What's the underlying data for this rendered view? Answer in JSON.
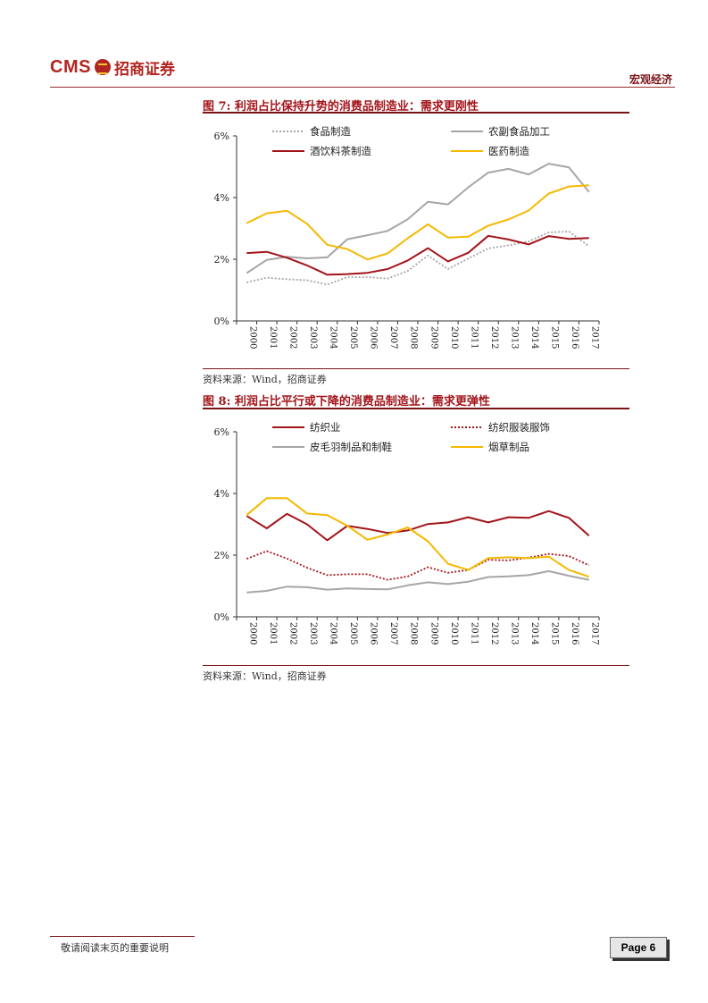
{
  "header": {
    "logo_text": "CMS",
    "logo_cn": "招商证券",
    "section": "宏观经济"
  },
  "figures": [
    {
      "title": "图 7: 利润占比保持升势的消费品制造业：需求更刚性",
      "source": "资料来源：Wind，招商证券"
    },
    {
      "title": "图 8: 利润占比平行或下降的消费品制造业：需求更弹性",
      "source": "资料来源：Wind，招商证券"
    }
  ],
  "chart_data": [
    {
      "type": "line",
      "x": [
        "2000",
        "2001",
        "2002",
        "2003",
        "2004",
        "2005",
        "2006",
        "2007",
        "2008",
        "2009",
        "2010",
        "2011",
        "2012",
        "2013",
        "2014",
        "2015",
        "2016",
        "2017"
      ],
      "ylim": [
        0,
        6
      ],
      "yticks": [
        "0%",
        "2%",
        "4%",
        "6%"
      ],
      "series": [
        {
          "name": "食品制造",
          "color": "#a6a6a6",
          "style": "dotted",
          "values": [
            1.25,
            1.4,
            1.35,
            1.32,
            1.18,
            1.42,
            1.42,
            1.37,
            1.62,
            2.12,
            1.68,
            2.02,
            2.35,
            2.45,
            2.58,
            2.87,
            2.9,
            2.42
          ]
        },
        {
          "name": "农副食品加工",
          "color": "#a6a6a6",
          "style": "solid",
          "values": [
            1.55,
            1.98,
            2.08,
            2.03,
            2.06,
            2.65,
            2.78,
            2.92,
            3.3,
            3.86,
            3.78,
            4.33,
            4.81,
            4.93,
            4.75,
            5.1,
            4.98,
            4.18
          ]
        },
        {
          "name": "酒饮料茶制造",
          "color": "#a3141a",
          "style": "solid",
          "values": [
            2.2,
            2.24,
            2.05,
            1.8,
            1.5,
            1.52,
            1.56,
            1.68,
            1.96,
            2.36,
            1.93,
            2.21,
            2.76,
            2.64,
            2.48,
            2.75,
            2.66,
            2.69
          ]
        },
        {
          "name": "医药制造",
          "color": "#f5b800",
          "style": "solid",
          "values": [
            3.17,
            3.49,
            3.57,
            3.15,
            2.47,
            2.33,
            1.99,
            2.19,
            2.68,
            3.13,
            2.7,
            2.73,
            3.09,
            3.29,
            3.58,
            4.13,
            4.36,
            4.4
          ]
        }
      ]
    },
    {
      "type": "line",
      "x": [
        "2000",
        "2001",
        "2002",
        "2003",
        "2004",
        "2005",
        "2006",
        "2007",
        "2008",
        "2009",
        "2010",
        "2011",
        "2012",
        "2013",
        "2014",
        "2015",
        "2016",
        "2017"
      ],
      "ylim": [
        0,
        6
      ],
      "yticks": [
        "0%",
        "2%",
        "4%",
        "6%"
      ],
      "series": [
        {
          "name": "纺织业",
          "color": "#a3141a",
          "style": "solid",
          "values": [
            3.27,
            2.87,
            3.34,
            3.0,
            2.48,
            2.95,
            2.85,
            2.72,
            2.8,
            3.01,
            3.06,
            3.23,
            3.06,
            3.23,
            3.21,
            3.43,
            3.21,
            2.63
          ]
        },
        {
          "name": "纺织服装服饰",
          "color": "#a3141a",
          "style": "dotted",
          "values": [
            1.88,
            2.13,
            1.89,
            1.59,
            1.35,
            1.38,
            1.38,
            1.2,
            1.31,
            1.61,
            1.43,
            1.52,
            1.85,
            1.83,
            1.92,
            2.04,
            1.97,
            1.67
          ]
        },
        {
          "name": "皮毛羽制品和制鞋",
          "color": "#a6a6a6",
          "style": "solid",
          "values": [
            0.79,
            0.84,
            0.98,
            0.96,
            0.88,
            0.92,
            0.9,
            0.89,
            1.02,
            1.12,
            1.06,
            1.14,
            1.29,
            1.31,
            1.35,
            1.48,
            1.33,
            1.2
          ]
        },
        {
          "name": "烟草制品",
          "color": "#f5b800",
          "style": "solid",
          "values": [
            3.3,
            3.85,
            3.85,
            3.35,
            3.3,
            2.95,
            2.5,
            2.67,
            2.9,
            2.45,
            1.72,
            1.52,
            1.9,
            1.93,
            1.9,
            1.95,
            1.52,
            1.3
          ]
        }
      ]
    }
  ],
  "footer": {
    "disclaimer": "敬请阅读末页的重要说明",
    "page": "Page 6"
  }
}
